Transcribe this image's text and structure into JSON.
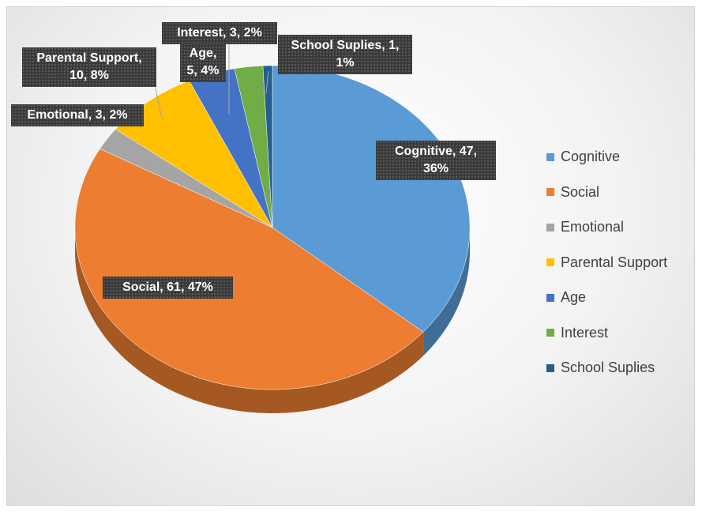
{
  "chart_data": {
    "type": "pie",
    "categories": [
      "Cognitive",
      "Social",
      "Emotional",
      "Parental Support",
      "Age",
      "Interest",
      "School Suplies"
    ],
    "values": [
      47,
      61,
      3,
      10,
      5,
      3,
      1
    ],
    "value_labels": [
      "Cognitive, 47, 36%",
      "Social, 61, 47%",
      "Emotional, 3, 2%",
      "Parental Support, 10, 8%",
      "Age, 5, 4%",
      "Interest, 3, 2%",
      "School Suplies, 1, 1%"
    ],
    "colors": [
      "#5b9bd5",
      "#ed7d31",
      "#a5a5a5",
      "#ffc000",
      "#4472c4",
      "#70ad47",
      "#255e91"
    ],
    "legend": "right"
  }
}
